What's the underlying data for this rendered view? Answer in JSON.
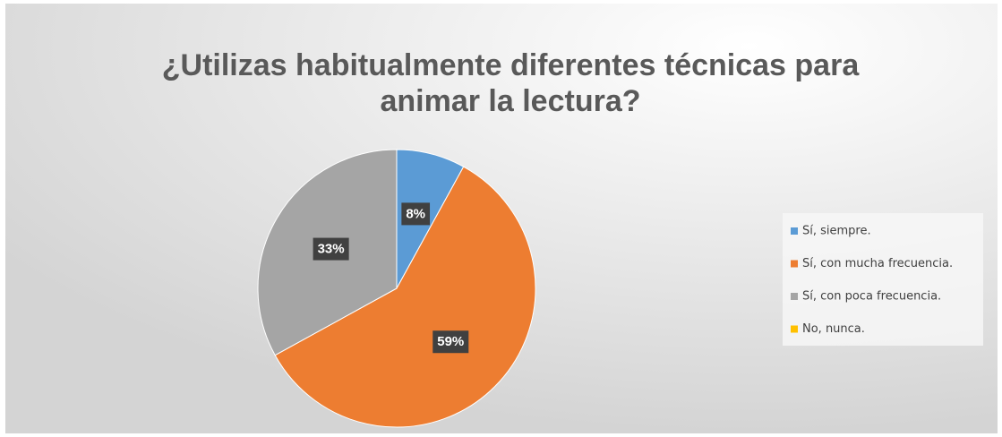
{
  "chart_data": {
    "type": "pie",
    "title": [
      "¿Utilizas habitualmente diferentes técnicas para",
      "animar la lectura?"
    ],
    "categories": [
      "Sí, siempre.",
      "Sí, con mucha frecuencia.",
      "Sí, con poca frecuencia.",
      "No, nunca."
    ],
    "values": [
      8,
      59,
      33,
      0
    ],
    "value_labels": [
      "8%",
      "59%",
      "33%",
      null
    ],
    "colors": [
      "#5b9bd5",
      "#ed7d31",
      "#a5a5a5",
      "#ffc000"
    ],
    "legend": "right"
  }
}
